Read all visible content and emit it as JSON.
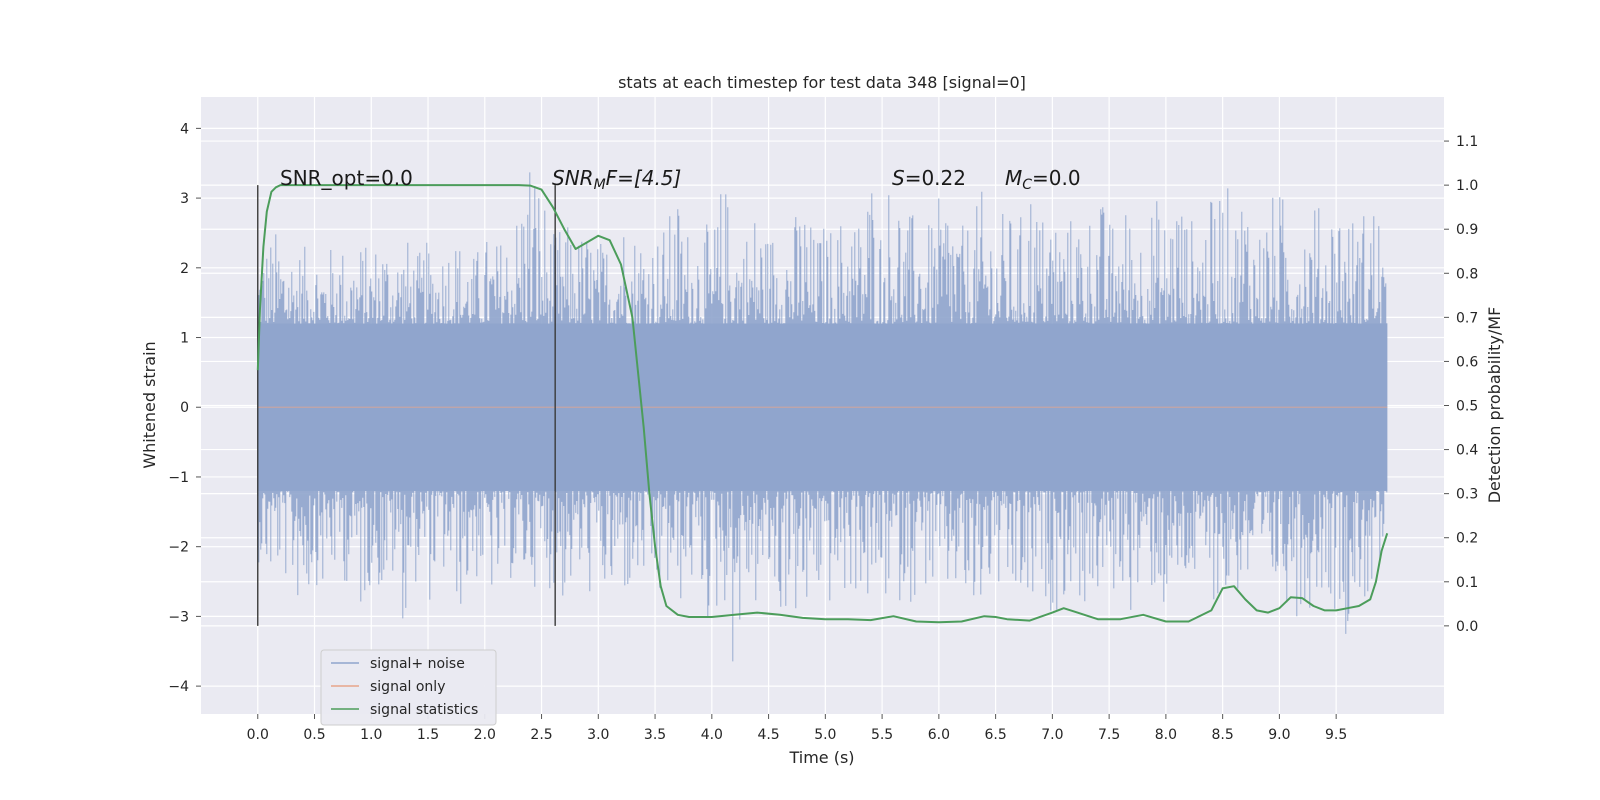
{
  "chart_data": {
    "type": "line",
    "title": "stats at each timestep for test data 348 [signal=0]",
    "xlabel": "Time (s)",
    "ylabel_left": "Whitened strain",
    "ylabel_right": "Detection probability/MF",
    "xlim": [
      -0.5,
      10.45
    ],
    "ylim_left": [
      -4.4,
      4.45
    ],
    "ylim_right": [
      -0.2,
      1.2
    ],
    "xticks": [
      "0.0",
      "0.5",
      "1.0",
      "1.5",
      "2.0",
      "2.5",
      "3.0",
      "3.5",
      "4.0",
      "4.5",
      "5.0",
      "5.5",
      "6.0",
      "6.5",
      "7.0",
      "7.5",
      "8.0",
      "8.5",
      "9.0",
      "9.5"
    ],
    "yticks_left": [
      "4",
      "3",
      "2",
      "1",
      "0",
      "−1",
      "−2",
      "−3",
      "−4"
    ],
    "yticks_right": [
      "1.1",
      "1.0",
      "0.9",
      "0.8",
      "0.7",
      "0.6",
      "0.5",
      "0.4",
      "0.3",
      "0.2",
      "0.1",
      "0.0"
    ],
    "grid": true,
    "legend_placement": "lower-left",
    "colors": {
      "signal_noise": "#8fa4cc",
      "signal_only": "#e8a58a",
      "signal_statistics": "#4c9d5b",
      "vline": "#3a3a3a",
      "background": "#eaeaf2"
    },
    "series": [
      {
        "name": "signal+ noise",
        "envelope_x": [
          0.0,
          0.1,
          0.2,
          0.3,
          0.4,
          0.5,
          0.6,
          0.7,
          0.8,
          0.9,
          1.0,
          1.1,
          1.2,
          1.3,
          1.4,
          1.5,
          1.6,
          1.7,
          1.8,
          1.9,
          2.0,
          2.1,
          2.2,
          2.3,
          2.4,
          2.5,
          2.6,
          2.7,
          2.8,
          2.9,
          3.0,
          3.1,
          3.2,
          3.3,
          3.4,
          3.5,
          3.6,
          3.7,
          3.8,
          3.9,
          4.0,
          4.1,
          4.2,
          4.3,
          4.4,
          4.5,
          4.6,
          4.7,
          4.8,
          4.9,
          5.0,
          5.1,
          5.2,
          5.3,
          5.4,
          5.5,
          5.6,
          5.7,
          5.8,
          5.9,
          6.0,
          6.1,
          6.2,
          6.3,
          6.4,
          6.5,
          6.6,
          6.7,
          6.8,
          6.9,
          7.0,
          7.1,
          7.2,
          7.3,
          7.4,
          7.5,
          7.6,
          7.7,
          7.8,
          7.9,
          8.0,
          8.1,
          8.2,
          8.3,
          8.4,
          8.5,
          8.6,
          8.7,
          8.8,
          8.9,
          9.0,
          9.1,
          9.2,
          9.3,
          9.4,
          9.5,
          9.6,
          9.7,
          9.8,
          9.9,
          9.95
        ],
        "envelope_upper": [
          2.3,
          2.5,
          2.6,
          2.4,
          2.3,
          2.4,
          2.2,
          2.5,
          2.2,
          2.4,
          2.3,
          2.6,
          2.3,
          2.5,
          2.2,
          2.4,
          2.3,
          2.6,
          2.4,
          2.2,
          2.5,
          2.4,
          2.6,
          3.0,
          4.05,
          3.3,
          2.5,
          2.7,
          2.5,
          2.6,
          2.4,
          2.5,
          2.9,
          2.6,
          2.7,
          2.5,
          2.7,
          3.1,
          2.6,
          2.8,
          2.5,
          3.4,
          2.7,
          2.6,
          3.0,
          2.5,
          2.9,
          2.6,
          3.2,
          2.5,
          2.7,
          2.6,
          3.1,
          2.8,
          3.6,
          2.6,
          3.85,
          2.7,
          2.9,
          2.6,
          3.0,
          3.4,
          2.6,
          2.8,
          3.2,
          2.7,
          2.9,
          2.6,
          3.5,
          2.8,
          3.1,
          2.6,
          2.9,
          2.8,
          3.2,
          2.7,
          2.9,
          3.0,
          2.6,
          3.1,
          2.8,
          3.4,
          2.7,
          2.9,
          3.0,
          3.5,
          2.8,
          3.5,
          2.6,
          3.0,
          3.2,
          2.8,
          2.9,
          3.1,
          2.7,
          3.3,
          2.9,
          2.7,
          3.2,
          2.9,
          1.4
        ],
        "envelope_lower": [
          -2.2,
          -2.6,
          -2.4,
          -2.7,
          -3.0,
          -2.5,
          -2.8,
          -2.4,
          -2.6,
          -3.1,
          -2.5,
          -2.8,
          -2.6,
          -3.2,
          -2.5,
          -2.9,
          -2.4,
          -2.7,
          -3.0,
          -2.5,
          -2.6,
          -2.9,
          -2.4,
          -2.8,
          -2.5,
          -2.7,
          -2.6,
          -2.9,
          -2.5,
          -2.8,
          -2.6,
          -3.0,
          -2.7,
          -2.9,
          -2.6,
          -3.1,
          -2.8,
          -3.0,
          -2.6,
          -2.8,
          -3.4,
          -2.7,
          -4.0,
          -2.8,
          -3.0,
          -2.6,
          -3.2,
          -2.8,
          -3.6,
          -2.7,
          -3.0,
          -2.8,
          -2.9,
          -2.6,
          -3.1,
          -2.8,
          -3.0,
          -2.7,
          -2.9,
          -2.6,
          -3.0,
          -2.8,
          -2.7,
          -3.6,
          -2.8,
          -2.6,
          -3.2,
          -2.9,
          -3.3,
          -2.7,
          -3.0,
          -2.8,
          -2.7,
          -3.0,
          -2.8,
          -2.9,
          -2.6,
          -3.0,
          -2.8,
          -2.7,
          -3.1,
          -2.9,
          -2.6,
          -2.8,
          -2.7,
          -3.0,
          -2.8,
          -2.6,
          -3.2,
          -2.9,
          -2.7,
          -2.9,
          -3.1,
          -2.8,
          -2.6,
          -3.0,
          -3.3,
          -2.8,
          -2.9,
          -2.7,
          -1.1
        ]
      },
      {
        "name": "signal only",
        "x": [
          0.0,
          9.95
        ],
        "y": [
          0.0,
          0.0
        ]
      },
      {
        "name": "signal statistics",
        "axis": "right",
        "x": [
          0.0,
          0.02,
          0.05,
          0.08,
          0.12,
          0.16,
          0.2,
          0.3,
          0.5,
          1.0,
          1.5,
          2.0,
          2.3,
          2.4,
          2.5,
          2.6,
          2.7,
          2.8,
          2.9,
          3.0,
          3.1,
          3.2,
          3.3,
          3.4,
          3.45,
          3.5,
          3.55,
          3.6,
          3.7,
          3.8,
          4.0,
          4.2,
          4.4,
          4.6,
          4.8,
          5.0,
          5.2,
          5.4,
          5.6,
          5.8,
          6.0,
          6.2,
          6.4,
          6.5,
          6.6,
          6.8,
          7.0,
          7.1,
          7.2,
          7.4,
          7.6,
          7.8,
          8.0,
          8.2,
          8.4,
          8.5,
          8.6,
          8.7,
          8.8,
          8.9,
          9.0,
          9.1,
          9.2,
          9.3,
          9.4,
          9.5,
          9.6,
          9.7,
          9.8,
          9.85,
          9.9,
          9.95
        ],
        "y": [
          0.58,
          0.72,
          0.86,
          0.94,
          0.985,
          0.995,
          1.0,
          1.0,
          1.0,
          1.0,
          1.0,
          1.0,
          1.0,
          0.999,
          0.99,
          0.95,
          0.9,
          0.855,
          0.87,
          0.885,
          0.875,
          0.82,
          0.7,
          0.45,
          0.3,
          0.18,
          0.09,
          0.045,
          0.025,
          0.02,
          0.02,
          0.025,
          0.03,
          0.025,
          0.018,
          0.015,
          0.015,
          0.013,
          0.022,
          0.01,
          0.008,
          0.01,
          0.022,
          0.02,
          0.015,
          0.012,
          0.03,
          0.04,
          0.032,
          0.015,
          0.015,
          0.025,
          0.01,
          0.01,
          0.035,
          0.085,
          0.09,
          0.06,
          0.035,
          0.03,
          0.04,
          0.065,
          0.063,
          0.045,
          0.035,
          0.035,
          0.04,
          0.045,
          0.06,
          0.1,
          0.17,
          0.21
        ]
      }
    ],
    "vlines": [
      0.0,
      2.62
    ],
    "annotations": {
      "snr_opt": "SNR_opt=0.0",
      "snr_mf_prefix": "SNR",
      "snr_mf_sub": "M",
      "snr_mf_suffix": "F=[4.5]",
      "s_var": "S",
      "s_value": "=0.22",
      "mc_var": "M",
      "mc_sub": "C",
      "mc_value": "=0.0"
    }
  }
}
